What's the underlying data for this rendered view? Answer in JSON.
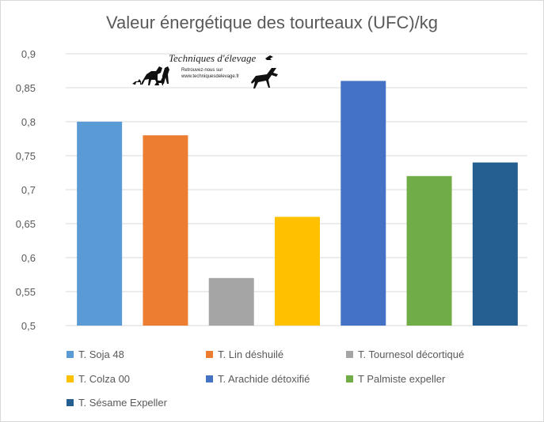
{
  "chart_data": {
    "type": "bar",
    "title": "Valeur énergétique des tourteaux (UFC)/kg",
    "xlabel": "",
    "ylabel": "",
    "ylim": [
      0.5,
      0.9
    ],
    "yticks": [
      "0,5",
      "0,55",
      "0,6",
      "0,65",
      "0,7",
      "0,75",
      "0,8",
      "0,85",
      "0,9"
    ],
    "ytick_values": [
      0.5,
      0.55,
      0.6,
      0.65,
      0.7,
      0.75,
      0.8,
      0.85,
      0.9
    ],
    "grid": true,
    "legend_position": "bottom",
    "categories": [
      "T. Soja 48",
      "T. Lin déshuilé",
      "T. Tournesol décortiqué",
      "T. Colza 00",
      "T. Arachide détoxifié",
      "T Palmiste expeller",
      "T. Sésame Expeller"
    ],
    "values": [
      0.8,
      0.78,
      0.57,
      0.66,
      0.86,
      0.72,
      0.74
    ],
    "colors": [
      "#5b9bd5",
      "#ed7d31",
      "#a5a5a5",
      "#ffc000",
      "#4472c4",
      "#70ad47",
      "#255e91"
    ]
  },
  "watermark": {
    "title": "Techniques d'élevage",
    "line1": "Retrouvez-nous sur",
    "line2": "www.techniquesdelevage.fr",
    "icon": "animals-silhouette-icon"
  }
}
